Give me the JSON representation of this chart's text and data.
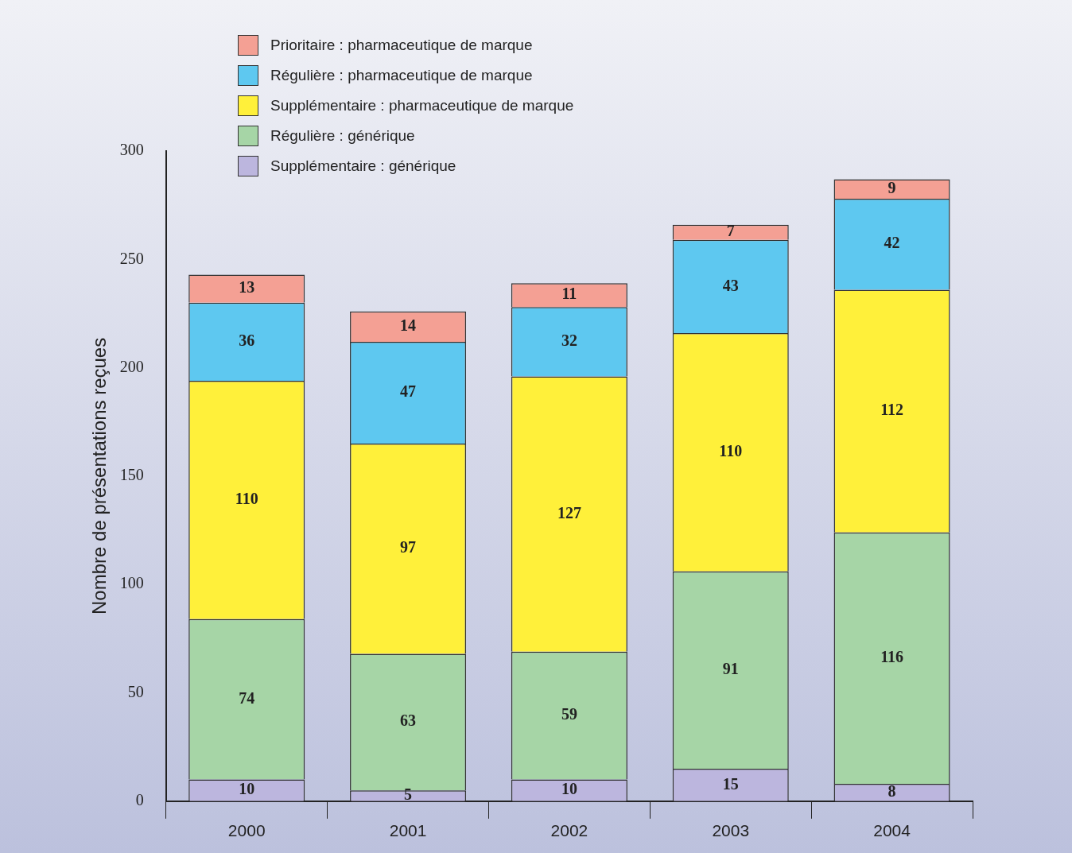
{
  "chart_data": {
    "type": "bar",
    "ylabel": "Nombre de présentations reçues",
    "categories": [
      "2000",
      "2001",
      "2002",
      "2003",
      "2004"
    ],
    "stacked": true,
    "data_labels": true,
    "legend": "top left",
    "grid": false,
    "ylim": [
      0,
      300
    ],
    "yticks": [
      0,
      50,
      100,
      150,
      200,
      250,
      300
    ],
    "series": [
      {
        "name": "Supplémentaire : générique",
        "color": "#bcb6de",
        "values": [
          10,
          5,
          10,
          15,
          8
        ]
      },
      {
        "name": "Régulière : générique",
        "color": "#a6d5a6",
        "values": [
          74,
          63,
          59,
          91,
          116
        ]
      },
      {
        "name": "Supplémentaire : pharmaceutique de marque",
        "color": "#fff03a",
        "values": [
          110,
          97,
          127,
          110,
          112
        ]
      },
      {
        "name": "Régulière : pharmaceutique de marque",
        "color": "#5ec8f0",
        "values": [
          36,
          47,
          32,
          43,
          42
        ]
      },
      {
        "name": "Prioritaire : pharmaceutique de marque",
        "color": "#f4a094",
        "values": [
          13,
          14,
          11,
          7,
          9
        ]
      }
    ]
  }
}
